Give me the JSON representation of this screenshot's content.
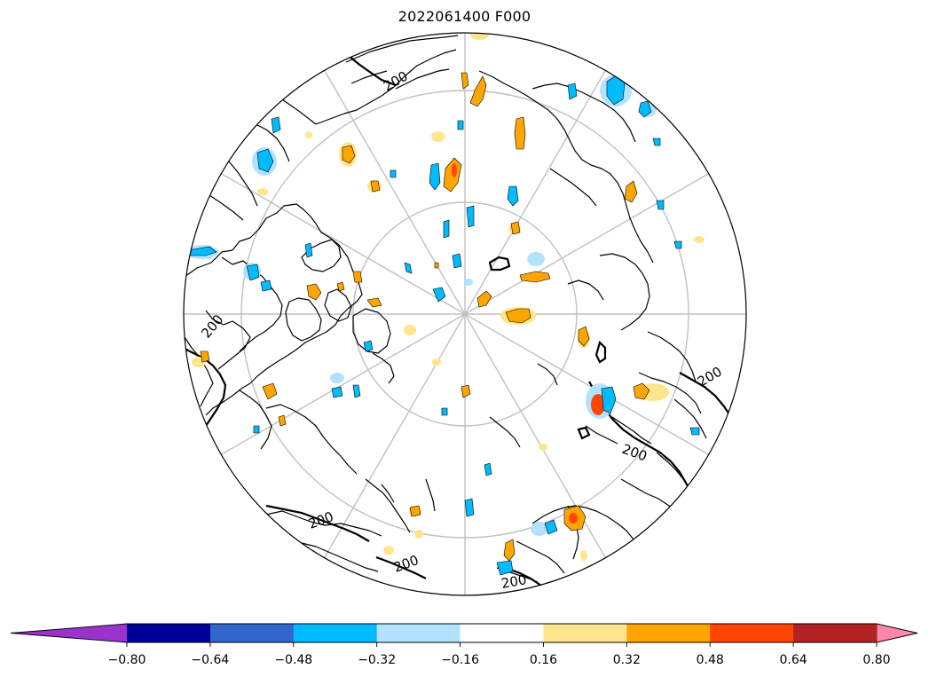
{
  "title": "2022061400 F000",
  "contour_label": "200",
  "colorbar": {
    "colors": [
      "#9933cc",
      "#000099",
      "#3366cc",
      "#00bbff",
      "#b3e2ff",
      "#ffffff",
      "#ffe68c",
      "#ffa500",
      "#ff4500",
      "#b22222",
      "#ff88aa"
    ],
    "ticks": [
      "−0.80",
      "−0.64",
      "−0.48",
      "−0.32",
      "−0.16",
      "0.16",
      "0.32",
      "0.48",
      "0.64",
      "0.80"
    ]
  },
  "map": {
    "projection": "north polar stereographic",
    "land_outline_color": "#000000",
    "graticule_color": "#c0c0c0"
  }
}
